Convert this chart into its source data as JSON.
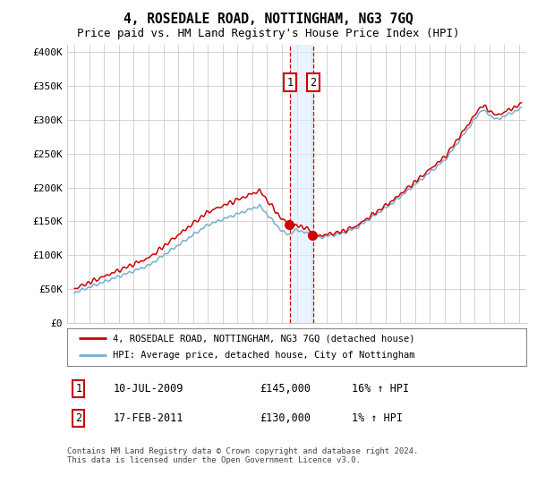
{
  "title": "4, ROSEDALE ROAD, NOTTINGHAM, NG3 7GQ",
  "subtitle": "Price paid vs. HM Land Registry's House Price Index (HPI)",
  "title_fontsize": 10.5,
  "subtitle_fontsize": 9,
  "ylabel_ticks": [
    "£0",
    "£50K",
    "£100K",
    "£150K",
    "£200K",
    "£250K",
    "£300K",
    "£350K",
    "£400K"
  ],
  "ytick_vals": [
    0,
    50000,
    100000,
    150000,
    200000,
    250000,
    300000,
    350000,
    400000
  ],
  "ylim": [
    0,
    410000
  ],
  "line1_color": "#cc0000",
  "line2_color": "#7aadce",
  "transaction1_date": 2009.53,
  "transaction1_price": 145000,
  "transaction2_date": 2011.12,
  "transaction2_price": 130000,
  "legend1_label": "4, ROSEDALE ROAD, NOTTINGHAM, NG3 7GQ (detached house)",
  "legend2_label": "HPI: Average price, detached house, City of Nottingham",
  "table_row1": [
    "1",
    "10-JUL-2009",
    "£145,000",
    "16% ↑ HPI"
  ],
  "table_row2": [
    "2",
    "17-FEB-2011",
    "£130,000",
    "1% ↑ HPI"
  ],
  "footer": "Contains HM Land Registry data © Crown copyright and database right 2024.\nThis data is licensed under the Open Government Licence v3.0.",
  "bg_color": "#ffffff",
  "grid_color": "#cccccc",
  "shading_color": "#ddeeff"
}
